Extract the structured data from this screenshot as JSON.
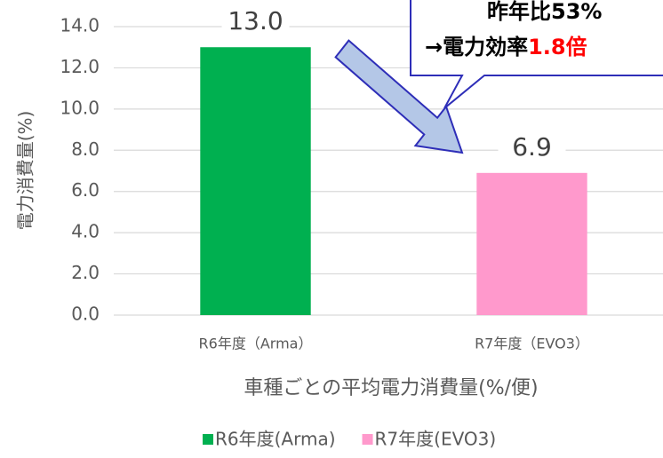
{
  "chart_data": {
    "type": "bar",
    "x_label": "車種ごとの平均電力消費量(%/便)",
    "y_label": "電力消費量(%)",
    "categories": [
      "R6年度（Arma）",
      "R7年度（EVO3）"
    ],
    "series": [
      {
        "name": "R6年度(Arma)",
        "color": "#00b050",
        "values": [
          13,
          null
        ],
        "value_labels": [
          "13.0",
          null
        ]
      },
      {
        "name": "R7年度(EVO3)",
        "color": "#ff99cc",
        "values": [
          null,
          6.9
        ],
        "value_labels": [
          null,
          "6.9"
        ]
      }
    ],
    "ylim": [
      0,
      14
    ],
    "yticks": [
      {
        "value": 0,
        "label": "0.0"
      },
      {
        "value": 2,
        "label": "2.0"
      },
      {
        "value": 4,
        "label": "4.0"
      },
      {
        "value": 6,
        "label": "6.0"
      },
      {
        "value": 8,
        "label": "8.0"
      },
      {
        "value": 10,
        "label": "10.0"
      },
      {
        "value": 12,
        "label": "12.0"
      },
      {
        "value": 14,
        "label": "14.0"
      }
    ],
    "grid": true,
    "legend": "bottom",
    "annotation": {
      "line1": "昨年比53%",
      "line2": "→電力効率",
      "highlight": "1.8倍"
    }
  }
}
